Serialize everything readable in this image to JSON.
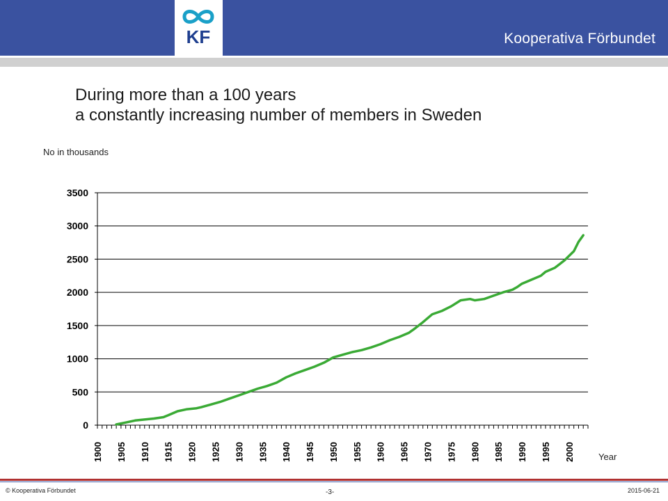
{
  "header": {
    "brand": "Kooperativa Förbundet",
    "logo_text": "KF"
  },
  "title": {
    "line1": "During more than a 100 years",
    "line2": "a constantly increasing number of members in Sweden"
  },
  "colors": {
    "header_bg": "#3a52a0",
    "line": "#3aaa35",
    "logo_teal": "#1aa0c8",
    "logo_navy": "#1f3f8f"
  },
  "chart_data": {
    "type": "line",
    "ylabel": "No in thousands",
    "xlabel": "Year",
    "ylim": [
      0,
      3500
    ],
    "xlim": [
      1900,
      2004
    ],
    "yticks": [
      0,
      500,
      1000,
      1500,
      2000,
      2500,
      3000,
      3500
    ],
    "xticks": [
      1900,
      1905,
      1910,
      1915,
      1920,
      1925,
      1930,
      1935,
      1940,
      1945,
      1950,
      1955,
      1960,
      1965,
      1970,
      1975,
      1980,
      1985,
      1990,
      1995,
      2000
    ],
    "grid": "horizontal",
    "series": [
      {
        "x": [
          1904,
          1906,
          1908,
          1910,
          1912,
          1914,
          1915,
          1917,
          1919,
          1921,
          1922,
          1924,
          1926,
          1928,
          1930,
          1932,
          1934,
          1936,
          1938,
          1940,
          1942,
          1944,
          1946,
          1948,
          1950,
          1952,
          1954,
          1956,
          1958,
          1960,
          1962,
          1964,
          1966,
          1967,
          1969,
          1971,
          1973,
          1975,
          1977,
          1979,
          1980,
          1982,
          1984,
          1986,
          1988,
          1989,
          1990,
          1992,
          1994,
          1995,
          1997,
          1999,
          2001,
          2002,
          2003
        ],
        "y": [
          10,
          40,
          70,
          85,
          100,
          120,
          150,
          210,
          240,
          255,
          270,
          310,
          350,
          400,
          450,
          500,
          550,
          590,
          640,
          720,
          780,
          830,
          880,
          940,
          1020,
          1060,
          1100,
          1130,
          1170,
          1220,
          1280,
          1330,
          1390,
          1440,
          1550,
          1670,
          1720,
          1790,
          1880,
          1900,
          1880,
          1900,
          1950,
          2000,
          2040,
          2080,
          2130,
          2190,
          2250,
          2310,
          2370,
          2480,
          2620,
          2760,
          2860
        ]
      }
    ]
  },
  "footer": {
    "left": "© Kooperativa Förbundet",
    "center": "-3-",
    "right": "2015-06-21"
  }
}
